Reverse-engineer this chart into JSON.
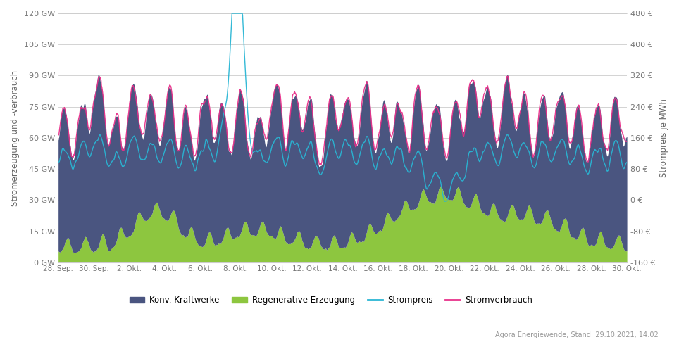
{
  "ylabel_left": "Stromerzeugung und -verbrauch",
  "ylabel_right": "Strompreis je MWh",
  "ylim_left": [
    0,
    120
  ],
  "ylim_right": [
    -160,
    480
  ],
  "yticks_left": [
    0,
    15,
    30,
    45,
    60,
    75,
    90,
    105,
    120
  ],
  "ytick_labels_left": [
    "0 GW",
    "15 GW",
    "30 GW",
    "45 GW",
    "60 GW",
    "75 GW",
    "90 GW",
    "105 GW",
    "120 GW"
  ],
  "yticks_right": [
    -160,
    -80,
    0,
    80,
    160,
    240,
    320,
    400,
    480
  ],
  "ytick_labels_right": [
    "-160 €",
    "-80 €",
    "0 €",
    "80 €",
    "160 €",
    "240 €",
    "320 €",
    "400 €",
    "480 €"
  ],
  "xtick_labels": [
    "28. Sep.",
    "30. Sep.",
    "2. Okt.",
    "4. Okt.",
    "6. Okt.",
    "8. Okt.",
    "10. Okt.",
    "12. Okt.",
    "14. Okt.",
    "16. Okt.",
    "18. Okt.",
    "20. Okt.",
    "22. Okt.",
    "24. Okt.",
    "26. Okt.",
    "28. Okt.",
    "30. Okt."
  ],
  "color_konv": "#4a5580",
  "color_regen": "#8dc63f",
  "color_preis": "#29b6d4",
  "color_verbrauch": "#e8308a",
  "legend_labels": [
    "Konv. Kraftwerke",
    "Regenerative Erzeugung",
    "Strompreis",
    "Stromverbrauch"
  ],
  "background_color": "#ffffff",
  "grid_color": "#cccccc",
  "source_text": "Agora Energiewende, Stand: 29.10.2021, 14:02",
  "n_points": 1500
}
